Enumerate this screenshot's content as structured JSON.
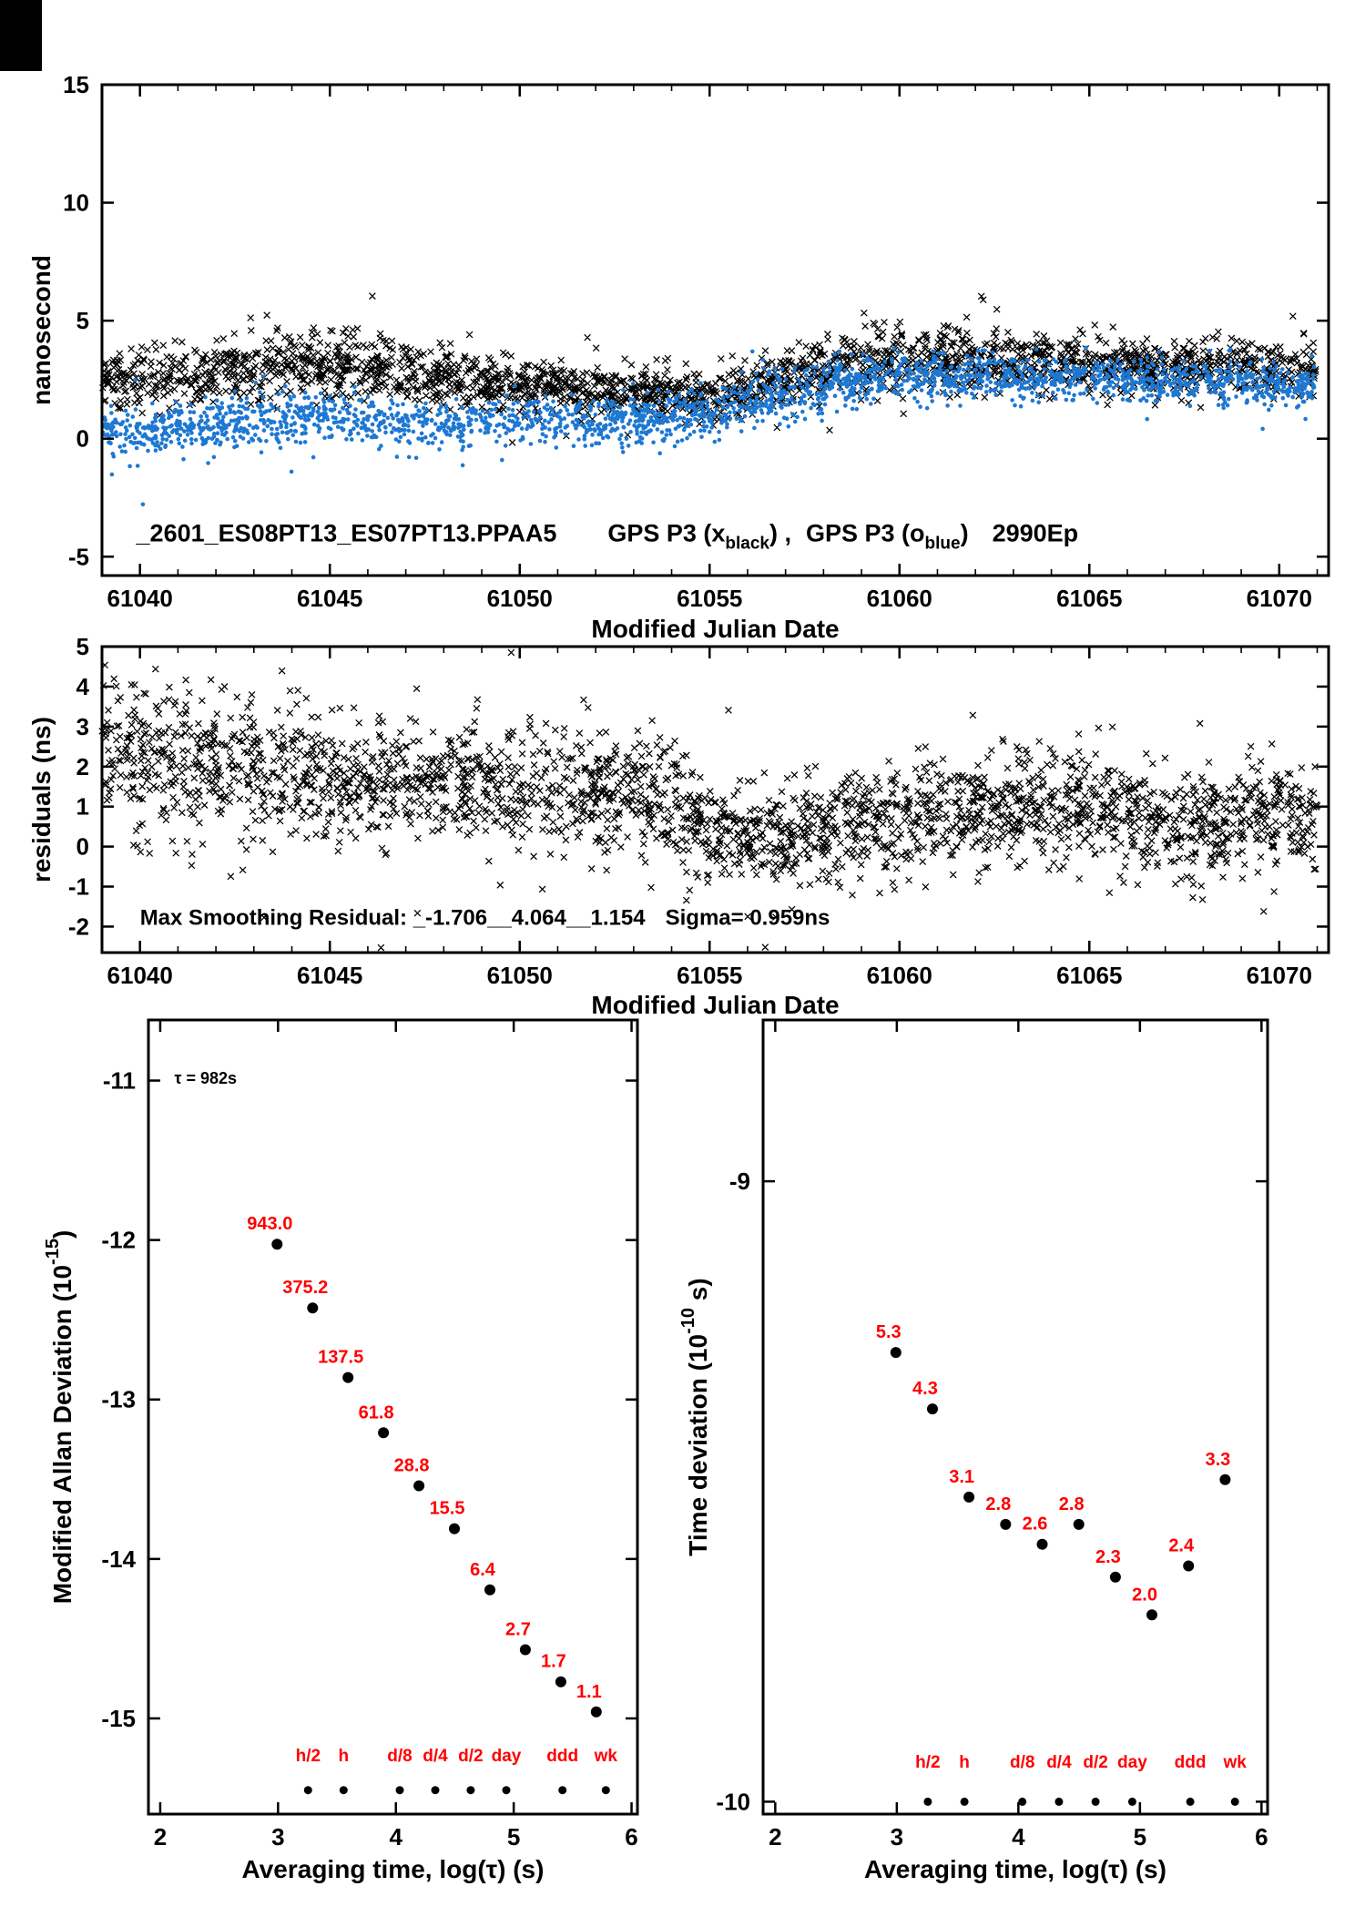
{
  "page": {
    "background": "#ffffff",
    "corner_mark_color": "#000000"
  },
  "colors": {
    "axis": "#000000",
    "black_series": "#000000",
    "blue_series": "#1e78d2",
    "label_red": "#ff0000"
  },
  "chart_data": [
    {
      "id": "phase",
      "type": "scatter",
      "xlabel": "Modified Julian Date",
      "ylabel": "nanosecond",
      "xlim": [
        61039,
        61071.3
      ],
      "ylim": [
        -5.8,
        15
      ],
      "xticks": [
        61040,
        61045,
        61050,
        61055,
        61060,
        61065,
        61070
      ],
      "yticks": [
        -5,
        0,
        5,
        10,
        15
      ],
      "minor_x_step": 1,
      "annotation": {
        "x": 61039.9,
        "y": -4.35,
        "size": 27,
        "parts": [
          {
            "t": "_2601_ES08PT13_ES07PT13.PPAA5"
          },
          {
            "t": "GPS P3 (x",
            "dx": 56
          },
          {
            "t": "black",
            "sub": true
          },
          {
            "t": ") ,"
          },
          {
            "t": "GPS P3 (o",
            "dx": 16
          },
          {
            "t": "blue",
            "sub": true
          },
          {
            "t": ")"
          },
          {
            "t": "2990Ep",
            "dx": 26
          }
        ]
      },
      "series": [
        {
          "name": "GPS P3 black",
          "marker": "x",
          "color": "#000000",
          "n": 2400,
          "seed": 11,
          "sigma": [
            [
              61039,
              0.6
            ],
            [
              61043,
              0.75
            ],
            [
              61046,
              0.7
            ],
            [
              61049,
              0.55
            ],
            [
              61052,
              0.5
            ],
            [
              61055,
              0.5
            ],
            [
              61058,
              0.6
            ],
            [
              61060,
              0.75
            ],
            [
              61063,
              0.6
            ],
            [
              61067,
              0.55
            ],
            [
              61071,
              0.6
            ]
          ],
          "outlier_frac": 0.025,
          "outlier_scale": 2.4,
          "trend": [
            [
              61039,
              2.5
            ],
            [
              61040,
              2.4
            ],
            [
              61041,
              2.5
            ],
            [
              61042,
              2.8
            ],
            [
              61043,
              3.1
            ],
            [
              61044,
              3.1
            ],
            [
              61045,
              3.0
            ],
            [
              61046,
              3.1
            ],
            [
              61047,
              2.8
            ],
            [
              61048,
              2.6
            ],
            [
              61049,
              2.4
            ],
            [
              61050,
              2.3
            ],
            [
              61051,
              2.2
            ],
            [
              61052,
              2.1
            ],
            [
              61053,
              2.0
            ],
            [
              61054,
              1.8
            ],
            [
              61055,
              1.7
            ],
            [
              61056,
              2.0
            ],
            [
              61057,
              2.5
            ],
            [
              61058,
              3.0
            ],
            [
              61059,
              3.3
            ],
            [
              61060,
              3.4
            ],
            [
              61061,
              3.4
            ],
            [
              61062,
              3.3
            ],
            [
              61063,
              3.2
            ],
            [
              61064,
              3.2
            ],
            [
              61065,
              3.1
            ],
            [
              61066,
              3.1
            ],
            [
              61067,
              3.0
            ],
            [
              61068,
              3.0
            ],
            [
              61069,
              3.0
            ],
            [
              61070,
              2.9
            ],
            [
              61071,
              2.9
            ]
          ]
        },
        {
          "name": "GPS P3 blue",
          "marker": "dot",
          "color": "#1e78d2",
          "n": 2400,
          "seed": 22,
          "sigma": [
            [
              61039,
              0.5
            ],
            [
              61044,
              0.55
            ],
            [
              61049,
              0.45
            ],
            [
              61054,
              0.5
            ],
            [
              61058,
              0.55
            ],
            [
              61063,
              0.5
            ],
            [
              61071,
              0.45
            ]
          ],
          "outlier_frac": 0.02,
          "outlier_scale": 2.2,
          "trend": [
            [
              61039,
              0.3
            ],
            [
              61040,
              0.2
            ],
            [
              61041,
              0.5
            ],
            [
              61042,
              0.7
            ],
            [
              61043,
              0.8
            ],
            [
              61044,
              0.9
            ],
            [
              61045,
              0.9
            ],
            [
              61046,
              0.8
            ],
            [
              61047,
              0.7
            ],
            [
              61048,
              0.6
            ],
            [
              61049,
              0.7
            ],
            [
              61050,
              0.8
            ],
            [
              61051,
              0.8
            ],
            [
              61052,
              0.7
            ],
            [
              61053,
              0.8
            ],
            [
              61054,
              0.9
            ],
            [
              61055,
              1.1
            ],
            [
              61056,
              1.5
            ],
            [
              61057,
              1.9
            ],
            [
              61058,
              2.2
            ],
            [
              61059,
              2.4
            ],
            [
              61060,
              2.6
            ],
            [
              61061,
              2.6
            ],
            [
              61062,
              2.6
            ],
            [
              61063,
              2.5
            ],
            [
              61064,
              2.5
            ],
            [
              61065,
              2.6
            ],
            [
              61066,
              2.5
            ],
            [
              61067,
              2.4
            ],
            [
              61068,
              2.4
            ],
            [
              61069,
              2.3
            ],
            [
              61070,
              2.2
            ],
            [
              61071,
              2.2
            ]
          ]
        }
      ]
    },
    {
      "id": "residuals",
      "type": "scatter",
      "xlabel": "Modified Julian Date",
      "ylabel": "residuals (ns)",
      "xlim": [
        61039,
        61071.3
      ],
      "ylim": [
        -2.65,
        5
      ],
      "xticks": [
        61040,
        61045,
        61050,
        61055,
        61060,
        61065,
        61070
      ],
      "yticks": [
        -2,
        -1,
        0,
        1,
        2,
        3,
        4,
        5
      ],
      "minor_x_step": 1,
      "annotation": {
        "x": 61040.0,
        "y": -1.95,
        "size": 24,
        "parts": [
          {
            "t": "Max Smoothing Residual: _-1.706__4.064__1.154"
          },
          {
            "t": "Sigma= 0.959ns",
            "dx": 22
          }
        ]
      },
      "series": [
        {
          "name": "residuals black",
          "marker": "x",
          "color": "#000000",
          "n": 2600,
          "seed": 33,
          "sigma": [
            [
              61039,
              0.95
            ],
            [
              61044,
              0.85
            ],
            [
              61048,
              0.8
            ],
            [
              61052,
              0.75
            ],
            [
              61054,
              0.7
            ],
            [
              61056,
              0.6
            ],
            [
              61060,
              0.65
            ],
            [
              61064,
              0.7
            ],
            [
              61071,
              0.65
            ]
          ],
          "outlier_frac": 0.03,
          "outlier_scale": 2.1,
          "trend": [
            [
              61039,
              2.5
            ],
            [
              61040,
              2.3
            ],
            [
              61041,
              2.2
            ],
            [
              61042,
              2.0
            ],
            [
              61043,
              2.0
            ],
            [
              61044,
              1.9
            ],
            [
              61045,
              1.8
            ],
            [
              61046,
              1.7
            ],
            [
              61047,
              1.6
            ],
            [
              61048,
              1.5
            ],
            [
              61049,
              1.5
            ],
            [
              61050,
              1.5
            ],
            [
              61051,
              1.4
            ],
            [
              61052,
              1.3
            ],
            [
              61053,
              1.2
            ],
            [
              61054,
              1.0
            ],
            [
              61055,
              0.5
            ],
            [
              61056,
              0.3
            ],
            [
              61057,
              0.3
            ],
            [
              61058,
              0.4
            ],
            [
              61059,
              0.6
            ],
            [
              61060,
              0.8
            ],
            [
              61061,
              0.9
            ],
            [
              61062,
              0.9
            ],
            [
              61063,
              1.0
            ],
            [
              61064,
              0.9
            ],
            [
              61065,
              0.9
            ],
            [
              61066,
              0.8
            ],
            [
              61067,
              0.7
            ],
            [
              61068,
              0.7
            ],
            [
              61069,
              0.7
            ],
            [
              61070,
              0.8
            ],
            [
              61071,
              0.8
            ]
          ]
        }
      ]
    },
    {
      "id": "mdev",
      "type": "points",
      "xlabel": "Averaging time, log(τ) (s)",
      "ylabel_parts": {
        "pre": "Modified Allan Deviation (10",
        "sup": "-15",
        "post": ")"
      },
      "xlim": [
        1.9,
        6.05
      ],
      "ylim": [
        -15.6,
        -10.62
      ],
      "xticks": [
        2,
        3,
        4,
        5,
        6
      ],
      "yticks": [
        -11,
        -12,
        -13,
        -14,
        -15
      ],
      "label_color": "#ff0000",
      "corner_note": {
        "text": "τ = 982s",
        "x": 2.12,
        "y": -11.02
      },
      "points": {
        "x": [
          2.992,
          3.293,
          3.594,
          3.895,
          4.196,
          4.497,
          4.798,
          5.099,
          5.4,
          5.701
        ],
        "y": [
          -12.026,
          -12.426,
          -12.862,
          -13.209,
          -13.541,
          -13.81,
          -14.194,
          -14.569,
          -14.77,
          -14.959
        ],
        "labels": [
          "943.0",
          "375.2",
          "137.5",
          "61.8",
          "28.8",
          "15.5",
          "6.4",
          "2.7",
          "1.7",
          "1.1"
        ]
      },
      "tau_marks": {
        "labels": [
          "h/2",
          "h",
          "d/8",
          "d/4",
          "d/2",
          "day",
          "ddd",
          "wk"
        ],
        "x": [
          3.255,
          3.556,
          4.033,
          4.334,
          4.635,
          4.937,
          5.414,
          5.782
        ],
        "dot_y": -15.45,
        "label_y": -15.27
      }
    },
    {
      "id": "tdev",
      "type": "points",
      "xlabel": "Averaging time, log(τ) (s)",
      "ylabel_parts": {
        "pre": "Time deviation (10",
        "sup": "-10",
        "post": " s)"
      },
      "xlim": [
        1.9,
        6.05
      ],
      "ylim": [
        -10.02,
        -8.74
      ],
      "xticks": [
        2,
        3,
        4,
        5,
        6
      ],
      "yticks": [
        -9,
        -10
      ],
      "label_color": "#ff0000",
      "points": {
        "x": [
          2.992,
          3.293,
          3.594,
          3.895,
          4.196,
          4.497,
          4.798,
          5.099,
          5.4,
          5.701
        ],
        "y": [
          -9.276,
          -9.367,
          -9.509,
          -9.553,
          -9.585,
          -9.553,
          -9.638,
          -9.699,
          -9.62,
          -9.481
        ],
        "labels": [
          "5.3",
          "4.3",
          "3.1",
          "2.8",
          "2.6",
          "2.8",
          "2.3",
          "2.0",
          "2.4",
          "3.3"
        ]
      },
      "tau_marks": {
        "labels": [
          "h/2",
          "h",
          "d/8",
          "d/4",
          "d/2",
          "day",
          "ddd",
          "wk"
        ],
        "x": [
          3.255,
          3.556,
          4.033,
          4.334,
          4.635,
          4.937,
          5.414,
          5.782
        ],
        "dot_y": -10.0,
        "label_y": -9.945
      }
    }
  ]
}
